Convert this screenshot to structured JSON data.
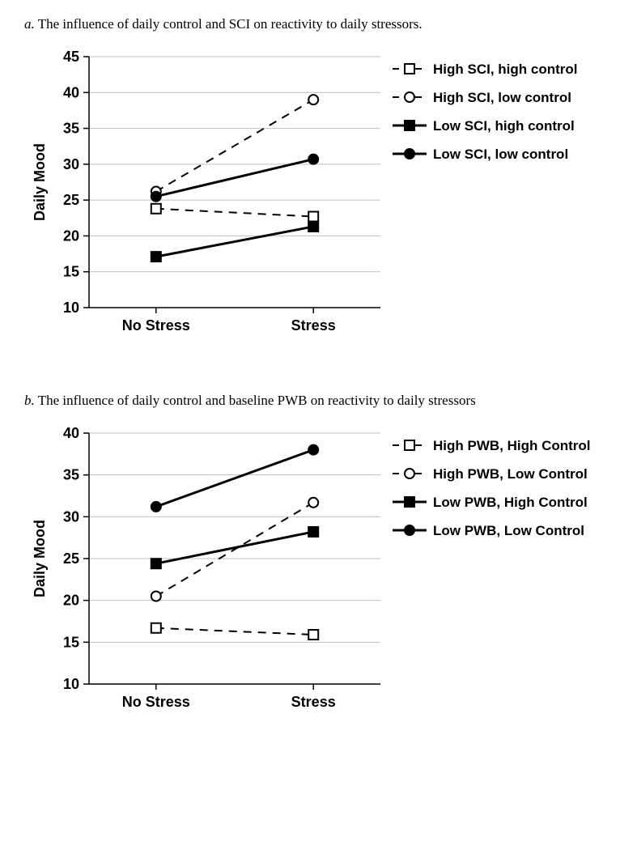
{
  "chart_a": {
    "type": "line",
    "caption_label": "a.",
    "caption_text": "The influence of daily control and SCI on reactivity to daily stressors.",
    "categories": [
      "No Stress",
      "Stress"
    ],
    "ylabel": "Daily Mood",
    "ylim": [
      10,
      45
    ],
    "ytick_step": 5,
    "background_color": "#ffffff",
    "grid_color": "#bfbfbf",
    "axis_color": "#000000",
    "line_width_solid": 3,
    "line_width_dash": 2,
    "dash_pattern": "10,8",
    "marker_size": 6,
    "font_family": "Arial",
    "series": [
      {
        "label": "High SCI, high control",
        "values": [
          23.8,
          22.7
        ],
        "dashed": true,
        "marker": "square",
        "filled": false
      },
      {
        "label": "High SCI, low control",
        "values": [
          26.2,
          39.0
        ],
        "dashed": true,
        "marker": "circle",
        "filled": false
      },
      {
        "label": "Low SCI, high control",
        "values": [
          17.1,
          21.3
        ],
        "dashed": false,
        "marker": "square",
        "filled": true
      },
      {
        "label": "Low SCI, low control",
        "values": [
          25.5,
          30.7
        ],
        "dashed": false,
        "marker": "circle",
        "filled": true
      }
    ]
  },
  "chart_b": {
    "type": "line",
    "caption_label": "b.",
    "caption_text": "The influence of daily control and baseline PWB on reactivity to daily stressors",
    "categories": [
      "No Stress",
      "Stress"
    ],
    "ylabel": "Daily Mood",
    "ylim": [
      10,
      40
    ],
    "ytick_step": 5,
    "background_color": "#ffffff",
    "grid_color": "#bfbfbf",
    "axis_color": "#000000",
    "line_width_solid": 3,
    "line_width_dash": 2,
    "dash_pattern": "10,8",
    "marker_size": 6,
    "font_family": "Arial",
    "series": [
      {
        "label": "High PWB, High Control",
        "values": [
          16.7,
          15.9
        ],
        "dashed": true,
        "marker": "square",
        "filled": false
      },
      {
        "label": "High PWB, Low Control",
        "values": [
          20.5,
          31.7
        ],
        "dashed": true,
        "marker": "circle",
        "filled": false
      },
      {
        "label": "Low PWB, High Control",
        "values": [
          24.4,
          28.2
        ],
        "dashed": false,
        "marker": "square",
        "filled": true
      },
      {
        "label": "Low PWB, Low Control",
        "values": [
          31.2,
          38.0
        ],
        "dashed": false,
        "marker": "circle",
        "filled": true
      }
    ]
  }
}
